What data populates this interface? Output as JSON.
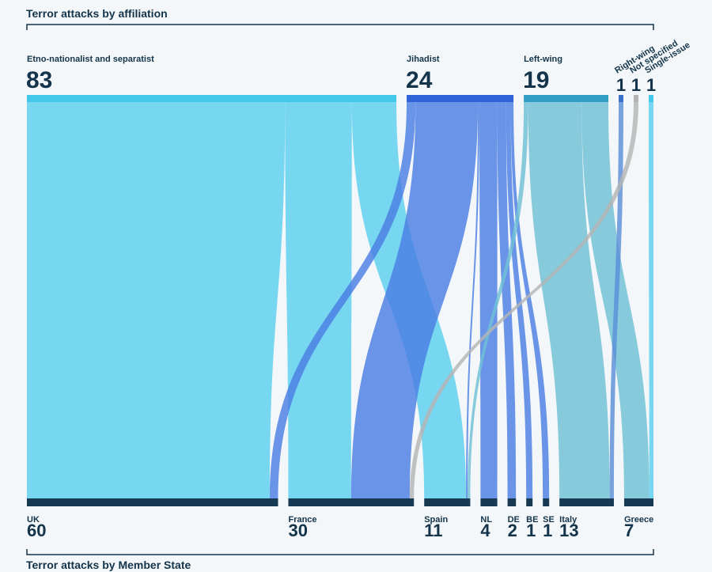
{
  "chart_data": {
    "type": "sankey",
    "title": "Terror attacks by affiliation",
    "bottom_title": "Terror attacks by Member State",
    "sources": [
      {
        "id": "etno",
        "label": "Etno-nationalist and separatist",
        "value": 83,
        "color": "#41c8ea",
        "link_color": "#5ccfee"
      },
      {
        "id": "jihadist",
        "label": "Jihadist",
        "value": 24,
        "color": "#2f62d6",
        "link_color": "#4a7ee3"
      },
      {
        "id": "left",
        "label": "Left-wing",
        "value": 19,
        "color": "#2fa0c4",
        "link_color": "#6fbfd6"
      },
      {
        "id": "right",
        "label": "Right-wing",
        "value": 1,
        "color": "#3a72c9",
        "link_color": "#5b8fd8"
      },
      {
        "id": "notspec",
        "label": "Not specified",
        "value": 1,
        "color": "#b4b4b4",
        "link_color": "#b4b4b4"
      },
      {
        "id": "single",
        "label": "Single-issue",
        "value": 1,
        "color": "#41c8ea",
        "link_color": "#5ccfee"
      }
    ],
    "targets": [
      {
        "id": "uk",
        "label": "UK",
        "value": 60
      },
      {
        "id": "france",
        "label": "France",
        "value": 30
      },
      {
        "id": "spain",
        "label": "Spain",
        "value": 11
      },
      {
        "id": "nl",
        "label": "NL",
        "value": 4
      },
      {
        "id": "de",
        "label": "DE",
        "value": 2
      },
      {
        "id": "be",
        "label": "BE",
        "value": 1
      },
      {
        "id": "se",
        "label": "SE",
        "value": 1
      },
      {
        "id": "italy",
        "label": "Italy",
        "value": 13
      },
      {
        "id": "greece",
        "label": "Greece",
        "value": 7
      }
    ],
    "flows": [
      {
        "source": "etno",
        "target": "uk",
        "value": 58
      },
      {
        "source": "etno",
        "target": "france",
        "value": 15
      },
      {
        "source": "etno",
        "target": "spain",
        "value": 10
      },
      {
        "source": "jihadist",
        "target": "uk",
        "value": 2
      },
      {
        "source": "jihadist",
        "target": "france",
        "value": 14
      },
      {
        "source": "jihadist",
        "target": "spain",
        "value": 0.3
      },
      {
        "source": "jihadist",
        "target": "nl",
        "value": 4
      },
      {
        "source": "jihadist",
        "target": "de",
        "value": 2
      },
      {
        "source": "jihadist",
        "target": "be",
        "value": 1
      },
      {
        "source": "jihadist",
        "target": "se",
        "value": 1
      },
      {
        "source": "left",
        "target": "spain",
        "value": 1
      },
      {
        "source": "left",
        "target": "italy",
        "value": 12
      },
      {
        "source": "left",
        "target": "greece",
        "value": 6
      },
      {
        "source": "right",
        "target": "italy",
        "value": 1
      },
      {
        "source": "notspec",
        "target": "france",
        "value": 1
      },
      {
        "source": "single",
        "target": "greece",
        "value": 1
      }
    ],
    "target_bar_color": "#173a52"
  }
}
